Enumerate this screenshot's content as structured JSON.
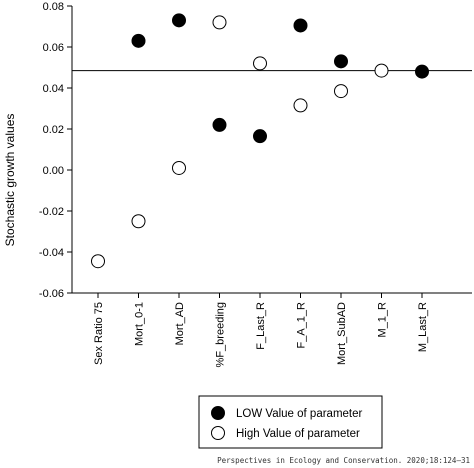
{
  "chart_data": {
    "type": "scatter",
    "title": "",
    "xlabel": "",
    "ylabel": "Stochastic growth values",
    "ylim": [
      -0.06,
      0.08
    ],
    "yticks": [
      -0.06,
      -0.04,
      -0.02,
      0.0,
      0.02,
      0.04,
      0.06,
      0.08
    ],
    "ytick_labels": [
      "-0.06",
      "-0.04",
      "-0.02",
      "0.00",
      "0.02",
      "0.04",
      "0.06",
      "0.08"
    ],
    "categories": [
      "Sex Ratio 75",
      "Mort_0-1",
      "Mort_AD",
      "%F_breeding",
      "F_Last_R",
      "F_A_1_R",
      "Mort_SubAD",
      "M_1_R",
      "M_Last_R"
    ],
    "reference_line": 0.0485,
    "grid": false,
    "legend_position": "bottom",
    "series": [
      {
        "name": "LOW Value of parameter",
        "marker": "filled-circle",
        "color": "#000000",
        "values": [
          null,
          0.063,
          0.073,
          0.022,
          0.0165,
          0.0705,
          0.053,
          null,
          0.048
        ]
      },
      {
        "name": "High Value of parameter",
        "marker": "open-circle",
        "color": "#000000",
        "values": [
          -0.0445,
          -0.025,
          0.001,
          0.072,
          0.052,
          0.0315,
          0.0385,
          0.0485,
          null
        ]
      }
    ]
  },
  "footer": "Perspectives in Ecology and Conservation. 2020;18:124–31"
}
